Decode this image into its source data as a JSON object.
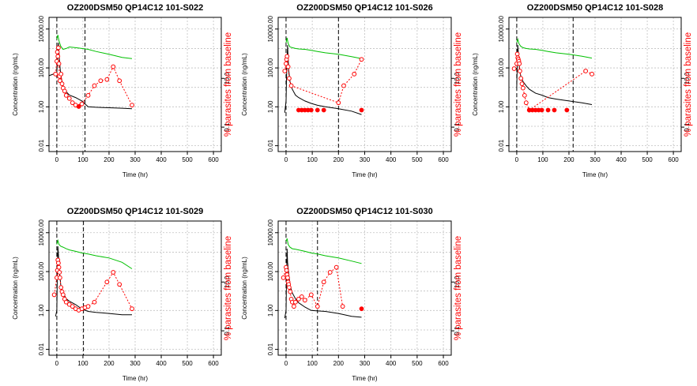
{
  "colors": {
    "conc": "#000000",
    "green": "#00c000",
    "parasite": "#ff0000",
    "grid": "#c0c0c0",
    "dose_line": "#000000"
  },
  "chart_data": [
    {
      "type": "line",
      "title": "OZ200DSM50 QP14C12 101-S022",
      "xlabel": "Time (hr)",
      "ylabel": "Concentration (ng/mL)",
      "y2label": "% parasites from baseline",
      "x_ticks": [
        "0",
        "100",
        "200",
        "300",
        "400",
        "500",
        "600"
      ],
      "y_ticks": [
        "0.01",
        "1.00",
        "100.00",
        "10000.00"
      ],
      "y2_ticks": [
        "0.1",
        "10.0"
      ],
      "xlim": [
        -30,
        630
      ],
      "ylim_log10": [
        -2.3,
        4.6
      ],
      "y2lim_log10": [
        -2,
        3.5
      ],
      "y2_scale": "log",
      "y_scale": "log",
      "dose_lines_x": [
        0,
        108
      ],
      "series": [
        {
          "role": "concentration",
          "x": [
            -30,
            -10,
            0,
            2,
            4,
            6,
            10,
            15,
            24,
            36,
            48,
            72,
            96,
            120,
            150,
            200,
            250,
            288
          ],
          "y": [
            40,
            50,
            60,
            180,
            600,
            2000,
            250,
            40,
            12,
            6,
            4,
            3,
            2,
            1,
            0.95,
            0.9,
            0.85,
            0.8
          ]
        },
        {
          "role": "green-curve",
          "x": [
            0,
            4,
            8,
            15,
            24,
            36,
            48,
            72,
            96,
            120,
            150,
            200,
            250,
            288
          ],
          "y": [
            3000,
            5000,
            2500,
            1300,
            900,
            1000,
            1200,
            1100,
            1000,
            900,
            700,
            500,
            350,
            300
          ]
        },
        {
          "role": "parasite-open",
          "x": [
            -5,
            0,
            2,
            4,
            6,
            8,
            10,
            12,
            16,
            20,
            24,
            30,
            36,
            48,
            60,
            72,
            96,
            120,
            144,
            168,
            192,
            216,
            240,
            288
          ],
          "y": [
            15,
            50,
            120,
            80,
            180,
            40,
            12,
            8,
            15,
            6,
            4,
            3,
            2,
            1.5,
            1,
            0.8,
            0.9,
            2,
            5,
            8,
            9,
            30,
            8,
            0.8
          ]
        },
        {
          "role": "parasite-solid",
          "x": [
            84
          ],
          "y": [
            0.7
          ]
        }
      ]
    },
    {
      "type": "line",
      "title": "OZ200DSM50 QP14C12 101-S026",
      "xlabel": "Time (hr)",
      "ylabel": "Concentration (ng/mL)",
      "y2label": "% parasites from baseline",
      "x_ticks": [
        "0",
        "100",
        "200",
        "300",
        "400",
        "500",
        "600"
      ],
      "y_ticks": [
        "0.01",
        "1.00",
        "100.00",
        "10000.00"
      ],
      "y2_ticks": [
        "0.1",
        "10.0"
      ],
      "xlim": [
        -30,
        630
      ],
      "ylim_log10": [
        -2.3,
        4.6
      ],
      "y2lim_log10": [
        -2,
        3.5
      ],
      "y_scale": "log",
      "y2_scale": "log",
      "dose_lines_x": [
        0,
        200
      ],
      "series": [
        {
          "role": "concentration",
          "x": [
            -5,
            0,
            2,
            4,
            6,
            10,
            15,
            24,
            36,
            48,
            72,
            96,
            120,
            150,
            200,
            250,
            288
          ],
          "y": [
            0.5,
            2,
            30,
            300,
            1500,
            80,
            20,
            8,
            4,
            3,
            2,
            1.5,
            1.2,
            1,
            0.8,
            0.6,
            0.4
          ]
        },
        {
          "role": "green-curve",
          "x": [
            0,
            4,
            8,
            15,
            24,
            36,
            48,
            72,
            96,
            120,
            150,
            200,
            250,
            288
          ],
          "y": [
            2000,
            3500,
            1800,
            1200,
            1100,
            1000,
            950,
            900,
            800,
            700,
            600,
            500,
            380,
            300
          ]
        },
        {
          "role": "parasite-open",
          "x": [
            -5,
            0,
            2,
            4,
            8,
            12,
            20,
            200,
            220,
            260,
            288
          ],
          "y": [
            20,
            40,
            60,
            80,
            30,
            10,
            5,
            1,
            5,
            15,
            60
          ]
        },
        {
          "role": "parasite-solid",
          "x": [
            48,
            60,
            72,
            84,
            96,
            120,
            144,
            288
          ],
          "y": [
            0.5,
            0.5,
            0.5,
            0.5,
            0.5,
            0.5,
            0.5,
            0.5
          ]
        }
      ]
    },
    {
      "type": "line",
      "title": "OZ200DSM50 QP14C12 101-S028",
      "xlabel": "Time (hr)",
      "ylabel": "Concentration (ng/mL)",
      "y2label": "% parasites from baseline",
      "x_ticks": [
        "0",
        "100",
        "200",
        "300",
        "400",
        "500",
        "600"
      ],
      "y_ticks": [
        "0.01",
        "1.00",
        "100.00",
        "10000.00"
      ],
      "y2_ticks": [
        "0.1",
        "10.0"
      ],
      "xlim": [
        -30,
        630
      ],
      "ylim_log10": [
        -2.3,
        4.6
      ],
      "y2lim_log10": [
        -2,
        3.5
      ],
      "y_scale": "log",
      "y2_scale": "log",
      "dose_lines_x": [
        0,
        216
      ],
      "series": [
        {
          "role": "concentration",
          "x": [
            0,
            2,
            4,
            6,
            10,
            15,
            24,
            36,
            48,
            72,
            96,
            120,
            150,
            200,
            250,
            288
          ],
          "y": [
            10,
            200,
            1500,
            600,
            100,
            40,
            20,
            12,
            8,
            5,
            4,
            3,
            2.5,
            2,
            1.6,
            1.3
          ]
        },
        {
          "role": "green-curve",
          "x": [
            0,
            4,
            8,
            15,
            24,
            36,
            48,
            72,
            96,
            120,
            150,
            200,
            250,
            288
          ],
          "y": [
            2000,
            3000,
            1800,
            1300,
            1100,
            1000,
            950,
            900,
            800,
            700,
            600,
            500,
            400,
            320
          ]
        },
        {
          "role": "parasite-open",
          "x": [
            -10,
            0,
            2,
            4,
            6,
            8,
            10,
            12,
            16,
            20,
            24,
            30,
            36,
            48,
            264,
            288
          ],
          "y": [
            25,
            40,
            100,
            70,
            60,
            50,
            40,
            20,
            10,
            6,
            4,
            2,
            1,
            0.5,
            20,
            15
          ]
        },
        {
          "role": "parasite-solid",
          "x": [
            48,
            60,
            72,
            84,
            96,
            120,
            144,
            192
          ],
          "y": [
            0.5,
            0.5,
            0.5,
            0.5,
            0.5,
            0.5,
            0.5,
            0.5
          ]
        }
      ]
    },
    {
      "type": "line",
      "title": "OZ200DSM50 QP14C12 101-S029",
      "xlabel": "Time (hr)",
      "ylabel": "Concentration (ng/mL)",
      "y2label": "% parasites from baseline",
      "x_ticks": [
        "0",
        "100",
        "200",
        "300",
        "400",
        "500",
        "600"
      ],
      "y_ticks": [
        "0.01",
        "1.00",
        "100.00",
        "10000.00"
      ],
      "y2_ticks": [
        "0.1",
        "10.0"
      ],
      "xlim": [
        -30,
        630
      ],
      "ylim_log10": [
        -2.3,
        4.6
      ],
      "y2lim_log10": [
        -2,
        3.5
      ],
      "y_scale": "log",
      "y2_scale": "log",
      "dose_lines_x": [
        0,
        102
      ],
      "series": [
        {
          "role": "concentration",
          "x": [
            -5,
            0,
            2,
            4,
            6,
            10,
            15,
            24,
            36,
            48,
            72,
            96,
            120,
            150,
            200,
            250,
            288
          ],
          "y": [
            0.5,
            1,
            100,
            2000,
            800,
            100,
            20,
            8,
            4,
            3,
            2,
            1.2,
            0.9,
            0.8,
            0.7,
            0.6,
            0.6
          ]
        },
        {
          "role": "green-curve",
          "x": [
            0,
            4,
            8,
            15,
            24,
            36,
            48,
            72,
            96,
            120,
            150,
            200,
            250,
            288
          ],
          "y": [
            2500,
            4000,
            2500,
            2000,
            1800,
            1500,
            1300,
            1100,
            900,
            800,
            650,
            500,
            300,
            140
          ]
        },
        {
          "role": "parasite-open",
          "x": [
            -10,
            0,
            2,
            4,
            6,
            8,
            10,
            12,
            16,
            20,
            24,
            30,
            36,
            48,
            60,
            72,
            84,
            96,
            108,
            120,
            144,
            192,
            216,
            240,
            288
          ],
          "y": [
            3,
            15,
            30,
            80,
            60,
            40,
            25,
            15,
            6,
            4,
            3,
            2,
            1.5,
            1.2,
            1,
            0.8,
            0.7,
            0.8,
            0.9,
            1,
            1.5,
            10,
            25,
            8,
            0.8
          ]
        },
        {
          "role": "parasite-solid",
          "x": [],
          "y": []
        }
      ]
    },
    {
      "type": "line",
      "title": "OZ200DSM50 QP14C12 101-S030",
      "xlabel": "Time (hr)",
      "ylabel": "Concentration (ng/mL)",
      "y2label": "% parasites from baseline",
      "x_ticks": [
        "0",
        "100",
        "200",
        "300",
        "400",
        "500",
        "600"
      ],
      "y_ticks": [
        "0.01",
        "1.00",
        "100.00",
        "10000.00"
      ],
      "y2_ticks": [
        "10.0",
        "0.1"
      ],
      "xlim": [
        -30,
        630
      ],
      "ylim_log10": [
        -2.3,
        4.6
      ],
      "y2lim_log10": [
        -2,
        3.5
      ],
      "y_scale": "log",
      "y2_scale": "log",
      "dose_lines_x": [
        0,
        120
      ],
      "series": [
        {
          "role": "concentration",
          "x": [
            -5,
            0,
            2,
            4,
            6,
            10,
            15,
            24,
            36,
            48,
            72,
            96,
            120,
            150,
            200,
            250,
            288
          ],
          "y": [
            0.4,
            1,
            50,
            1500,
            300,
            80,
            20,
            8,
            4,
            2.5,
            1.5,
            1,
            0.95,
            0.9,
            0.7,
            0.5,
            0.45
          ]
        },
        {
          "role": "green-curve",
          "x": [
            0,
            4,
            8,
            15,
            24,
            36,
            48,
            72,
            96,
            120,
            150,
            200,
            250,
            288
          ],
          "y": [
            3500,
            5000,
            2500,
            1800,
            1500,
            1400,
            1300,
            1100,
            900,
            800,
            650,
            500,
            350,
            260
          ]
        },
        {
          "role": "parasite-open",
          "x": [
            -10,
            0,
            2,
            4,
            6,
            8,
            10,
            12,
            16,
            20,
            24,
            30,
            36,
            48,
            60,
            72,
            96,
            120,
            144,
            168,
            192,
            216
          ],
          "y": [
            15,
            40,
            30,
            20,
            15,
            10,
            8,
            6,
            4,
            2,
            1.5,
            1,
            1.5,
            2,
            2.5,
            1.8,
            3,
            1,
            10,
            25,
            40,
            1
          ]
        },
        {
          "role": "parasite-solid",
          "x": [
            288
          ],
          "y": [
            0.8
          ]
        }
      ]
    }
  ]
}
